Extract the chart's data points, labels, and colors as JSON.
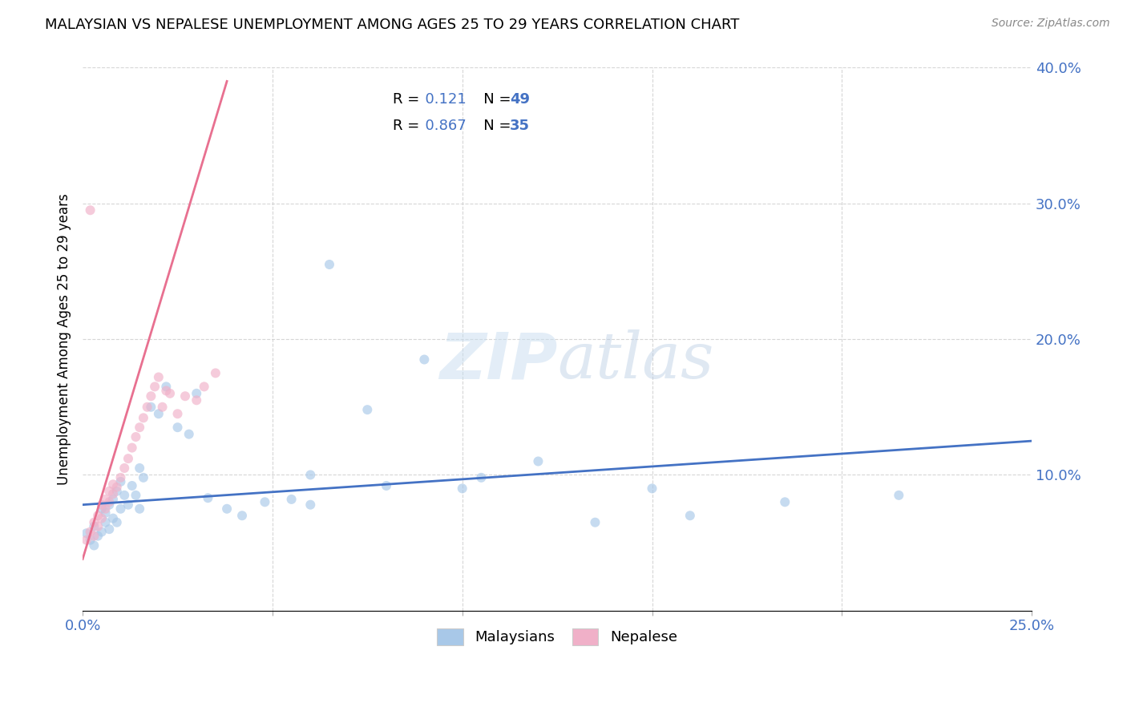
{
  "title": "MALAYSIAN VS NEPALESE UNEMPLOYMENT AMONG AGES 25 TO 29 YEARS CORRELATION CHART",
  "source": "Source: ZipAtlas.com",
  "ylabel": "Unemployment Among Ages 25 to 29 years",
  "xlim": [
    0.0,
    0.25
  ],
  "ylim": [
    0.0,
    0.4
  ],
  "xticks": [
    0.0,
    0.05,
    0.1,
    0.15,
    0.2,
    0.25
  ],
  "yticks": [
    0.0,
    0.1,
    0.2,
    0.3,
    0.4
  ],
  "xtick_labels": [
    "0.0%",
    "",
    "",
    "",
    "",
    "25.0%"
  ],
  "ytick_labels": [
    "",
    "10.0%",
    "20.0%",
    "30.0%",
    "40.0%"
  ],
  "legend_entries": [
    {
      "label": "Malaysians",
      "color": "#a8c8e8",
      "R": "0.121",
      "N": "49"
    },
    {
      "label": "Nepalese",
      "color": "#f0b0c8",
      "R": "0.867",
      "N": "35"
    }
  ],
  "scatter_malaysians": {
    "x": [
      0.001,
      0.002,
      0.003,
      0.003,
      0.004,
      0.005,
      0.005,
      0.006,
      0.006,
      0.007,
      0.007,
      0.008,
      0.008,
      0.009,
      0.009,
      0.01,
      0.01,
      0.011,
      0.012,
      0.013,
      0.014,
      0.015,
      0.015,
      0.016,
      0.018,
      0.02,
      0.022,
      0.025,
      0.028,
      0.03,
      0.033,
      0.038,
      0.042,
      0.048,
      0.055,
      0.06,
      0.065,
      0.075,
      0.08,
      0.09,
      0.1,
      0.105,
      0.12,
      0.135,
      0.15,
      0.16,
      0.185,
      0.215,
      0.06
    ],
    "y": [
      0.057,
      0.052,
      0.048,
      0.062,
      0.055,
      0.058,
      0.075,
      0.065,
      0.072,
      0.06,
      0.078,
      0.068,
      0.082,
      0.065,
      0.088,
      0.075,
      0.095,
      0.085,
      0.078,
      0.092,
      0.085,
      0.075,
      0.105,
      0.098,
      0.15,
      0.145,
      0.165,
      0.135,
      0.13,
      0.16,
      0.083,
      0.075,
      0.07,
      0.08,
      0.082,
      0.078,
      0.255,
      0.148,
      0.092,
      0.185,
      0.09,
      0.098,
      0.11,
      0.065,
      0.09,
      0.07,
      0.08,
      0.085,
      0.1
    ],
    "trendline_x": [
      0.0,
      0.25
    ],
    "trendline_y": [
      0.078,
      0.125
    ]
  },
  "scatter_nepalese": {
    "x": [
      0.001,
      0.002,
      0.003,
      0.003,
      0.004,
      0.004,
      0.005,
      0.005,
      0.006,
      0.006,
      0.007,
      0.007,
      0.008,
      0.008,
      0.009,
      0.01,
      0.011,
      0.012,
      0.013,
      0.014,
      0.015,
      0.016,
      0.017,
      0.018,
      0.019,
      0.02,
      0.021,
      0.022,
      0.023,
      0.025,
      0.027,
      0.03,
      0.032,
      0.035,
      0.002
    ],
    "y": [
      0.052,
      0.058,
      0.055,
      0.065,
      0.062,
      0.07,
      0.068,
      0.078,
      0.075,
      0.082,
      0.08,
      0.088,
      0.086,
      0.093,
      0.091,
      0.098,
      0.105,
      0.112,
      0.12,
      0.128,
      0.135,
      0.142,
      0.15,
      0.158,
      0.165,
      0.172,
      0.15,
      0.162,
      0.16,
      0.145,
      0.158,
      0.155,
      0.165,
      0.175,
      0.295
    ],
    "trendline_x": [
      0.0,
      0.038
    ],
    "trendline_y": [
      0.038,
      0.39
    ]
  },
  "trendline_malaysian_color": "#4472c4",
  "trendline_nepalese_color": "#e87090",
  "watermark_zip": "ZIP",
  "watermark_atlas": "atlas",
  "background_color": "#ffffff",
  "dot_size": 75,
  "dot_alpha": 0.65,
  "grid_color": "#cccccc",
  "grid_alpha": 0.8
}
